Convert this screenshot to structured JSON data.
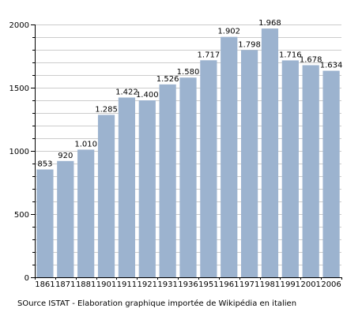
{
  "chart_data": {
    "type": "bar",
    "categories": [
      "1861",
      "1871",
      "1881",
      "1901",
      "1911",
      "1921",
      "1931",
      "1936",
      "1951",
      "1961",
      "1971",
      "1981",
      "1991",
      "2001",
      "2006"
    ],
    "values": [
      853,
      920,
      1010,
      1285,
      1422,
      1400,
      1526,
      1580,
      1717,
      1902,
      1798,
      1968,
      1716,
      1678,
      1634
    ],
    "value_labels": [
      "853",
      "920",
      "1.010",
      "1.285",
      "1.422",
      "1.400",
      "1.526",
      "1.580",
      "1.717",
      "1.902",
      "1.798",
      "1.968",
      "1.716",
      "1.678",
      "1.634"
    ],
    "yticks": [
      0,
      500,
      1000,
      1500,
      2000
    ],
    "ylim": [
      0,
      2000
    ],
    "grid": true,
    "title": "",
    "xlabel": "",
    "ylabel": "",
    "colors": {
      "bar": "#9cb3cf",
      "grid": "#cccccc",
      "axis": "#000000"
    }
  },
  "source_text": "SOurce ISTAT - Elaboration graphique importée de Wikipédia en italien"
}
